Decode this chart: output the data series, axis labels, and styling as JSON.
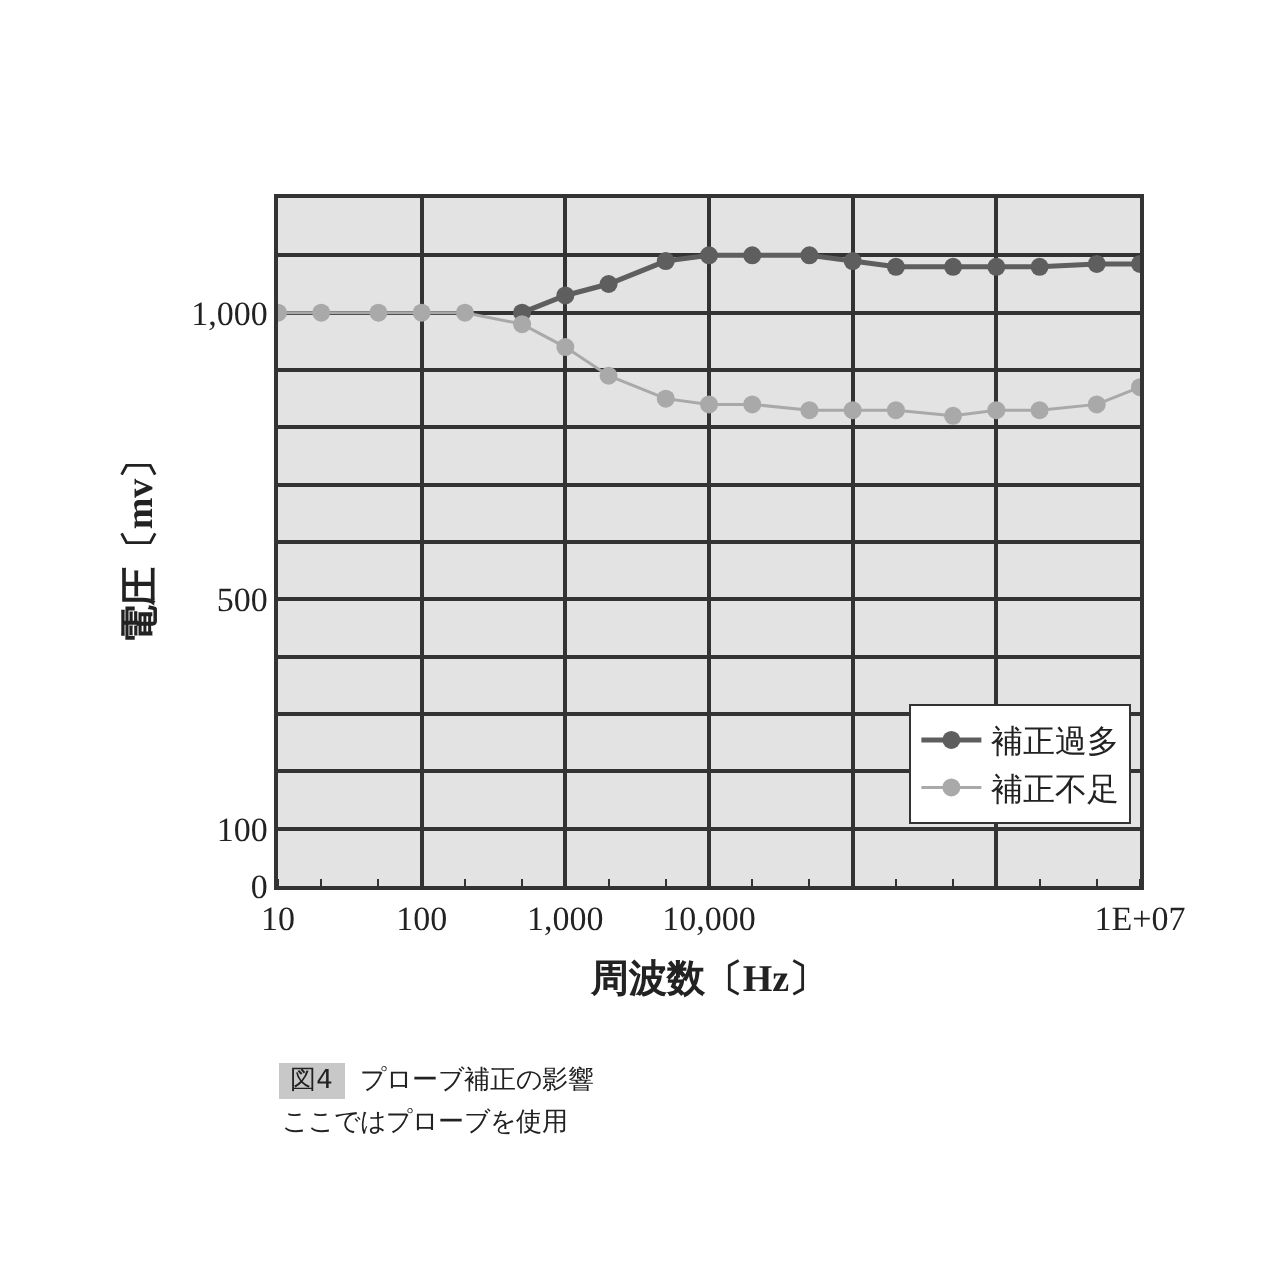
{
  "chart_data": {
    "type": "line",
    "xlabel": "周波数〔Hz〕",
    "ylabel": "電圧〔mv〕",
    "x": [
      10,
      20,
      50,
      100,
      200,
      500,
      1000,
      2000,
      5000,
      10000,
      20000,
      50000,
      100000,
      200000,
      500000,
      1000000,
      2000000,
      5000000,
      10000000
    ],
    "series": [
      {
        "name": "補正過多",
        "color": "#5e5e5e",
        "values": [
          null,
          null,
          null,
          null,
          null,
          1000,
          1030,
          1050,
          1090,
          1100,
          1100,
          1100,
          1090,
          1080,
          1080,
          1080,
          1080,
          1085,
          1085
        ]
      },
      {
        "name": "補正不足",
        "color": "#a9a9a9",
        "values": [
          1000,
          1000,
          1000,
          1000,
          1000,
          980,
          940,
          890,
          850,
          840,
          840,
          830,
          830,
          830,
          820,
          830,
          830,
          840,
          870
        ]
      }
    ],
    "log": "x",
    "xlim": [
      10,
      10000000
    ],
    "xticks": [
      10,
      100,
      {
        "value": 1000,
        "label": "1,000"
      },
      {
        "value": 10000,
        "label": "10,000"
      },
      {
        "value": 100000,
        "label": null
      },
      {
        "value": 1000000,
        "label": null
      },
      {
        "value": 10000000,
        "label": "1E+07"
      }
    ],
    "ylim": [
      0,
      1200
    ],
    "yticks": [
      0,
      100,
      {
        "value": 200,
        "label": null
      },
      {
        "value": 300,
        "label": null
      },
      {
        "value": 400,
        "label": null
      },
      500,
      {
        "value": 600,
        "label": null
      },
      {
        "value": 700,
        "label": null
      },
      {
        "value": 800,
        "label": null
      },
      {
        "value": 900,
        "label": null
      },
      {
        "value": 1000,
        "label": "1,000"
      },
      {
        "value": 1100,
        "label": null
      },
      {
        "value": 1200,
        "label": null
      }
    ],
    "grid": true,
    "legend": "bottom right",
    "marker": "circle",
    "line_style": "solid",
    "annotations": [
      "図4",
      "プローブ補正の影響",
      "ここではプローブを使用"
    ]
  }
}
